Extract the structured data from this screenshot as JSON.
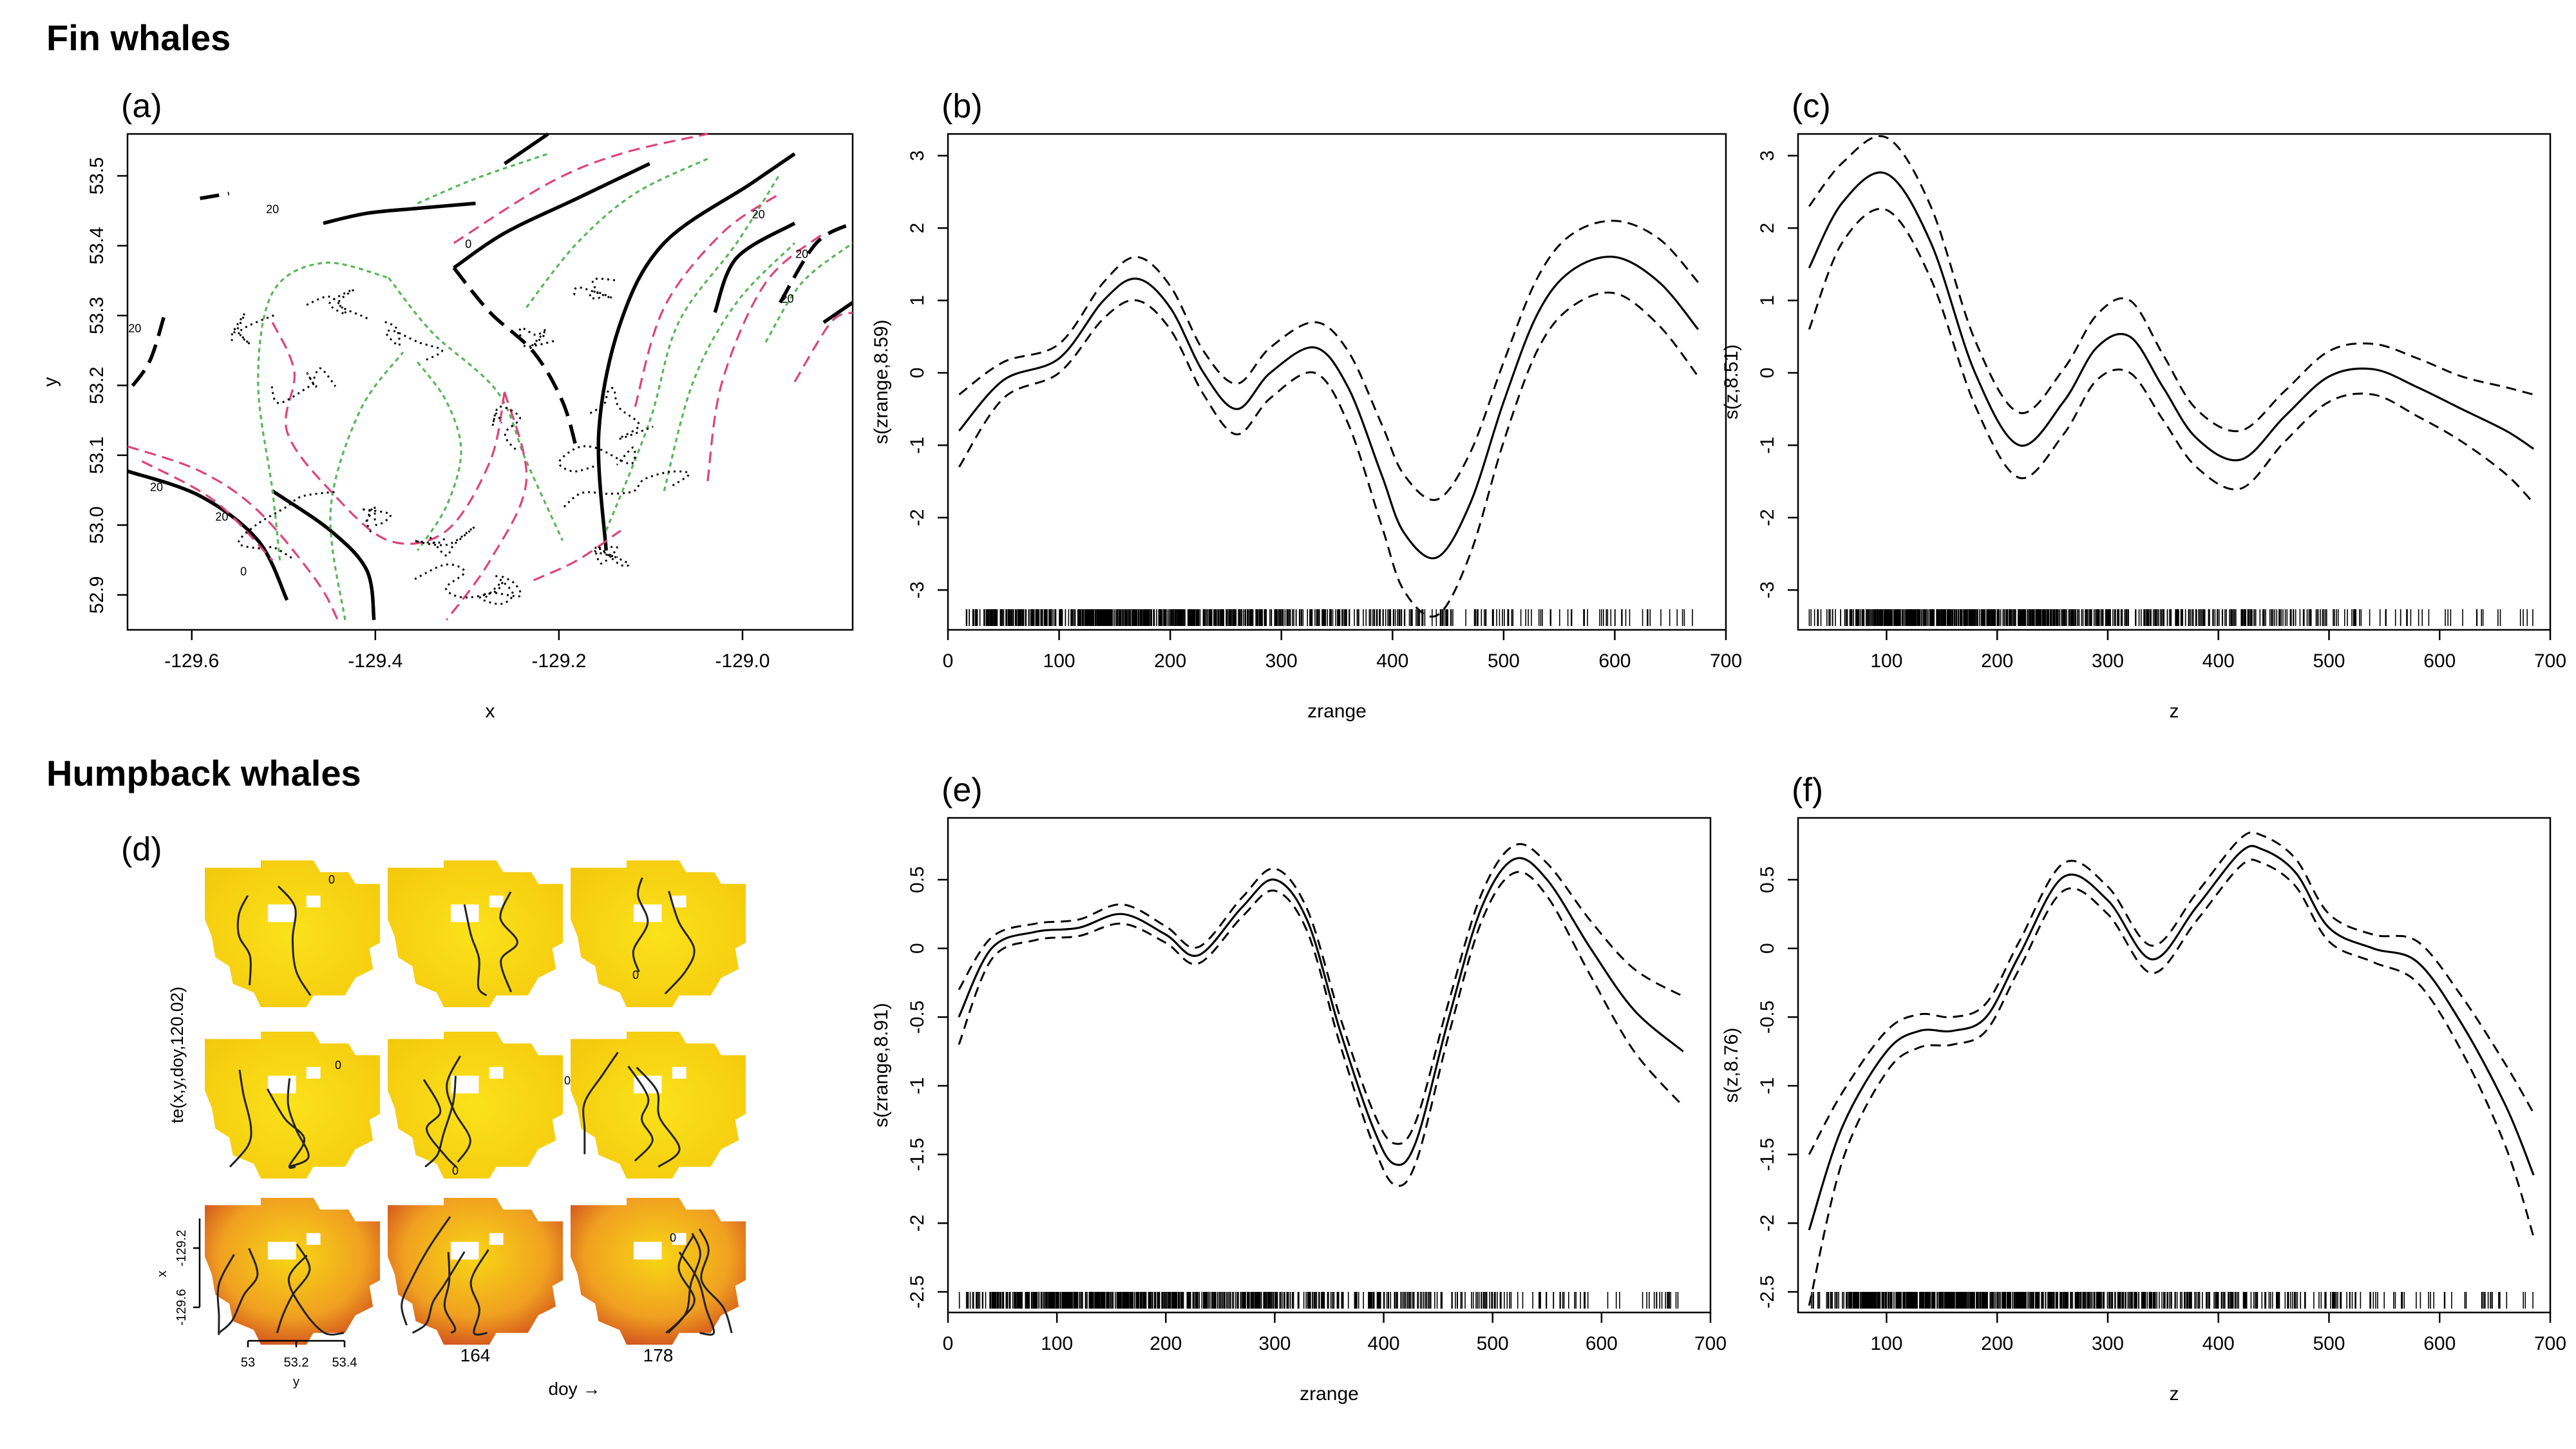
{
  "sections": {
    "fin": "Fin whales",
    "humpback": "Humpback whales"
  },
  "chart_data": [
    {
      "id": "a",
      "panel_label": "(a)",
      "type": "contour",
      "xlabel": "x",
      "ylabel": "y",
      "xlim": [
        -129.67,
        -128.88
      ],
      "ylim": [
        52.85,
        53.56
      ],
      "xticks": [
        -129.6,
        -129.4,
        -129.2,
        -129.0
      ],
      "yticks": [
        52.9,
        53.0,
        53.1,
        53.2,
        53.3,
        53.4,
        53.5
      ],
      "contour_labels": [
        "20",
        "20",
        "20",
        "0",
        "0",
        "20",
        "20",
        "20",
        "20"
      ],
      "series_colors": {
        "mean": "#000000",
        "upper": "#59b559",
        "lower": "#dd4477"
      }
    },
    {
      "id": "b",
      "panel_label": "(b)",
      "type": "line",
      "xlabel": "zrange",
      "ylabel": "s(zrange,8.59)",
      "xlim": [
        0,
        700
      ],
      "ylim": [
        -3.55,
        3.3
      ],
      "xticks": [
        0,
        100,
        200,
        300,
        400,
        500,
        600,
        700
      ],
      "yticks": [
        -3,
        -2,
        -1,
        0,
        1,
        2,
        3
      ],
      "x": [
        10,
        50,
        100,
        140,
        170,
        200,
        230,
        260,
        290,
        330,
        360,
        390,
        410,
        440,
        470,
        500,
        530,
        560,
        600,
        640,
        675
      ],
      "fit": [
        -0.8,
        -0.1,
        0.2,
        1.0,
        1.3,
        0.9,
        0.0,
        -0.5,
        0.0,
        0.35,
        -0.2,
        -1.4,
        -2.2,
        -2.55,
        -1.8,
        -0.4,
        0.8,
        1.4,
        1.6,
        1.25,
        0.6
      ],
      "se": [
        0.5,
        0.25,
        0.2,
        0.25,
        0.3,
        0.3,
        0.3,
        0.35,
        0.35,
        0.35,
        0.5,
        0.7,
        0.8,
        0.8,
        0.7,
        0.55,
        0.5,
        0.5,
        0.5,
        0.6,
        0.65
      ]
    },
    {
      "id": "c",
      "panel_label": "(c)",
      "type": "line",
      "xlabel": "z",
      "ylabel": "s(z,8.51)",
      "xlim": [
        20,
        700
      ],
      "ylim": [
        -3.55,
        3.3
      ],
      "xticks": [
        100,
        200,
        300,
        400,
        500,
        600,
        700
      ],
      "yticks": [
        -3,
        -2,
        -1,
        0,
        1,
        2,
        3
      ],
      "x": [
        30,
        60,
        100,
        140,
        180,
        220,
        260,
        290,
        320,
        350,
        380,
        420,
        460,
        500,
        540,
        580,
        620,
        660,
        685
      ],
      "fit": [
        1.45,
        2.35,
        2.75,
        1.8,
        0.0,
        -1.0,
        -0.4,
        0.35,
        0.5,
        -0.2,
        -0.9,
        -1.2,
        -0.6,
        -0.05,
        0.05,
        -0.2,
        -0.5,
        -0.8,
        -1.05
      ],
      "se": [
        0.85,
        0.55,
        0.5,
        0.5,
        0.45,
        0.45,
        0.45,
        0.45,
        0.5,
        0.45,
        0.4,
        0.4,
        0.35,
        0.35,
        0.35,
        0.4,
        0.45,
        0.6,
        0.75
      ]
    },
    {
      "id": "d",
      "panel_label": "(d)",
      "type": "heatmap",
      "ylabel": "te(x,y,doy,120.02)",
      "xlabel": "doy →",
      "inner_xlabel": "y",
      "inner_ylabel": "x",
      "inner_xticks": [
        "53",
        "53.2",
        "53.4"
      ],
      "inner_yticks": [
        "-129.2",
        "-129.6"
      ],
      "doy_labels": [
        "164",
        "178"
      ],
      "contour_labels": [
        "0",
        "0",
        "0",
        "0",
        "0",
        "0"
      ]
    },
    {
      "id": "e",
      "panel_label": "(e)",
      "type": "line",
      "xlabel": "zrange",
      "ylabel": "s(zrange,8.91)",
      "xlim": [
        0,
        700
      ],
      "ylim": [
        -2.65,
        0.95
      ],
      "xticks": [
        0,
        100,
        200,
        300,
        400,
        500,
        600,
        700
      ],
      "yticks": [
        -2.5,
        -2.0,
        -1.5,
        -1.0,
        -0.5,
        0.0,
        0.5
      ],
      "x": [
        10,
        40,
        80,
        120,
        160,
        200,
        230,
        270,
        300,
        330,
        360,
        390,
        410,
        430,
        460,
        490,
        520,
        550,
        590,
        630,
        675
      ],
      "fit": [
        -0.5,
        0.0,
        0.12,
        0.15,
        0.25,
        0.1,
        -0.05,
        0.3,
        0.5,
        0.2,
        -0.6,
        -1.3,
        -1.57,
        -1.4,
        -0.5,
        0.3,
        0.65,
        0.5,
        0.0,
        -0.45,
        -0.75
      ],
      "se": [
        0.2,
        0.08,
        0.06,
        0.06,
        0.07,
        0.06,
        0.06,
        0.07,
        0.08,
        0.08,
        0.1,
        0.12,
        0.15,
        0.15,
        0.12,
        0.1,
        0.1,
        0.12,
        0.2,
        0.3,
        0.4
      ]
    },
    {
      "id": "f",
      "panel_label": "(f)",
      "type": "line",
      "xlabel": "z",
      "ylabel": "s(z,8.76)",
      "xlim": [
        20,
        700
      ],
      "ylim": [
        -2.65,
        0.95
      ],
      "xticks": [
        100,
        200,
        300,
        400,
        500,
        600,
        700
      ],
      "yticks": [
        -2.5,
        -2.0,
        -1.5,
        -1.0,
        -0.5,
        0.0,
        0.5
      ],
      "x": [
        30,
        60,
        100,
        130,
        160,
        190,
        220,
        260,
        300,
        340,
        380,
        420,
        440,
        470,
        500,
        540,
        580,
        620,
        660,
        685
      ],
      "fit": [
        -2.05,
        -1.3,
        -0.75,
        -0.6,
        -0.6,
        -0.5,
        -0.05,
        0.52,
        0.35,
        -0.08,
        0.3,
        0.7,
        0.72,
        0.55,
        0.15,
        0.0,
        -0.1,
        -0.55,
        -1.15,
        -1.65
      ],
      "se": [
        0.55,
        0.25,
        0.15,
        0.12,
        0.1,
        0.1,
        0.1,
        0.1,
        0.1,
        0.1,
        0.1,
        0.1,
        0.1,
        0.1,
        0.1,
        0.1,
        0.15,
        0.2,
        0.3,
        0.45
      ]
    }
  ]
}
